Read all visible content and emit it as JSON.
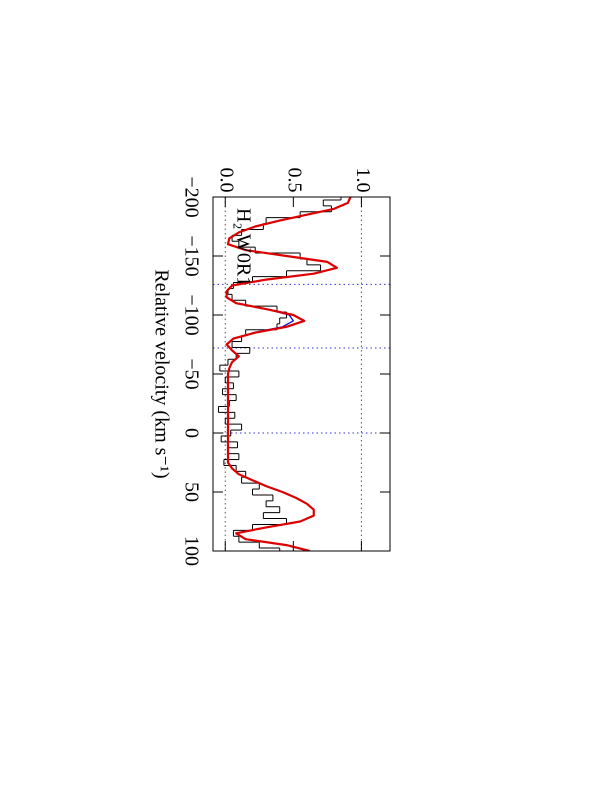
{
  "chart_data": {
    "type": "spectrum",
    "label": "H₂ W0R1",
    "x_label": "Relative velocity (km s⁻¹)",
    "xlim": [
      -200,
      100
    ],
    "xticks": [
      {
        "value": -200,
        "label": "−200"
      },
      {
        "value": -150,
        "label": "−150"
      },
      {
        "value": -100,
        "label": "−100"
      },
      {
        "value": -50,
        "label": "−50"
      },
      0,
      50,
      100
    ],
    "ylim": [
      -0.09,
      1.21
    ],
    "yticks": [
      {
        "value": 0,
        "label": "0.0"
      },
      {
        "value": 0.5,
        "label": "0.5"
      },
      {
        "value": 1,
        "label": "1.0"
      }
    ],
    "reference_flux": [
      0,
      1
    ],
    "components": [
      -126,
      -72,
      0
    ],
    "series": [
      {
        "style": "step",
        "color": "#000000",
        "x": [
          -200,
          -195,
          -190,
          -185,
          -180,
          -175,
          -170,
          -165,
          -160,
          -155,
          -150,
          -145,
          -140,
          -135,
          -130,
          -125,
          -120,
          -115,
          -110,
          -105,
          -100,
          -95,
          -90,
          -85,
          -80,
          -75,
          -70,
          -65,
          -60,
          -55,
          -50,
          -45,
          -40,
          -35,
          -30,
          -25,
          -20,
          -15,
          -10,
          -5,
          0,
          5,
          10,
          15,
          20,
          25,
          30,
          35,
          40,
          45,
          50,
          55,
          60,
          65,
          70,
          75,
          80,
          85,
          90,
          95,
          100
        ],
        "values": [
          0.85,
          0.72,
          0.78,
          0.55,
          0.3,
          0.28,
          0.12,
          0.05,
          0.1,
          0.22,
          0.55,
          0.6,
          0.7,
          0.45,
          0.2,
          0.06,
          0.02,
          0.05,
          0.15,
          0.38,
          0.45,
          0.4,
          0.38,
          0.15,
          0.12,
          0.05,
          0.18,
          0.08,
          0.02,
          -0.04,
          0.1,
          0.0,
          0.06,
          -0.02,
          0.08,
          0.03,
          -0.05,
          0.07,
          0.0,
          0.12,
          0.04,
          -0.03,
          0.09,
          0.02,
          0.1,
          -0.01,
          0.08,
          0.15,
          0.12,
          0.25,
          0.2,
          0.35,
          0.3,
          0.4,
          0.28,
          0.45,
          0.2,
          0.06,
          0.1,
          0.25,
          0.4
        ]
      },
      {
        "style": "line",
        "color": "#0000cc",
        "x": [
          -110,
          -105,
          -100,
          -95,
          -90,
          -85
        ],
        "values": [
          0.1,
          0.3,
          0.47,
          0.5,
          0.42,
          0.2
        ]
      },
      {
        "style": "line",
        "color": "#dd0000",
        "x": [
          -200,
          -195,
          -190,
          -185,
          -180,
          -175,
          -170,
          -165,
          -160,
          -155,
          -150,
          -145,
          -140,
          -135,
          -130,
          -125,
          -120,
          -115,
          -110,
          -105,
          -100,
          -95,
          -90,
          -85,
          -80,
          -75,
          -70,
          -65,
          -60,
          -55,
          -50,
          -45,
          -40,
          -35,
          -30,
          -25,
          -20,
          -15,
          -10,
          -5,
          0,
          5,
          10,
          15,
          20,
          25,
          30,
          35,
          40,
          45,
          50,
          55,
          60,
          65,
          70,
          75,
          80,
          85,
          90,
          95,
          100
        ],
        "values": [
          0.92,
          0.9,
          0.8,
          0.6,
          0.4,
          0.22,
          0.1,
          0.03,
          0.02,
          0.15,
          0.45,
          0.75,
          0.82,
          0.65,
          0.3,
          0.05,
          0.01,
          0.01,
          0.08,
          0.3,
          0.5,
          0.58,
          0.45,
          0.22,
          0.06,
          0.01,
          0.05,
          0.1,
          0.05,
          0.03,
          0.02,
          0.02,
          0.02,
          0.02,
          0.02,
          0.02,
          0.02,
          0.02,
          0.02,
          0.02,
          0.02,
          0.02,
          0.02,
          0.02,
          0.02,
          0.02,
          0.05,
          0.1,
          0.2,
          0.3,
          0.42,
          0.52,
          0.6,
          0.65,
          0.65,
          0.55,
          0.3,
          0.08,
          0.15,
          0.45,
          0.62
        ]
      }
    ]
  }
}
